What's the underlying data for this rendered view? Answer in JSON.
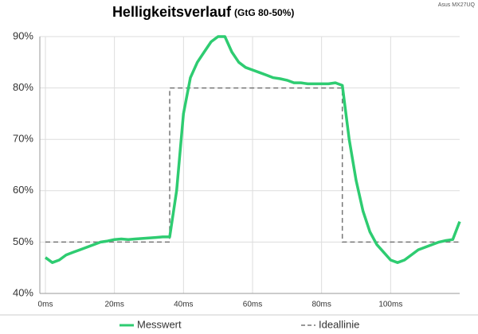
{
  "chart_data": {
    "type": "line",
    "title": "Helligkeitsverlauf",
    "subtitle": "(GtG 80-50%)",
    "annotation": "Asus MX27UQ",
    "xlim": [
      0,
      120
    ],
    "ylim": [
      40,
      90
    ],
    "xticks": [
      {
        "value": 0,
        "label": "0ms"
      },
      {
        "value": 20,
        "label": "20ms"
      },
      {
        "value": 40,
        "label": "40ms"
      },
      {
        "value": 60,
        "label": "60ms"
      },
      {
        "value": 80,
        "label": "80ms"
      },
      {
        "value": 100,
        "label": "100ms"
      }
    ],
    "yticks": [
      {
        "value": 40,
        "label": "40%"
      },
      {
        "value": 50,
        "label": "50%"
      },
      {
        "value": 60,
        "label": "60%"
      },
      {
        "value": 70,
        "label": "70%"
      },
      {
        "value": 80,
        "label": "80%"
      },
      {
        "value": 90,
        "label": "90%"
      }
    ],
    "grid": true,
    "legend": "bottom",
    "series": [
      {
        "name": "Messwert",
        "color": "#2ecc71",
        "dashed": false,
        "x": [
          0,
          2,
          4,
          6,
          8,
          10,
          12,
          14,
          16,
          18,
          20,
          22,
          24,
          26,
          28,
          30,
          32,
          34,
          36,
          38,
          40,
          42,
          44,
          46,
          48,
          50,
          52,
          54,
          56,
          58,
          60,
          62,
          64,
          66,
          68,
          70,
          72,
          74,
          76,
          78,
          80,
          82,
          84,
          86,
          88,
          90,
          92,
          94,
          96,
          98,
          100,
          102,
          104,
          106,
          108,
          110,
          112,
          114,
          116,
          118,
          120
        ],
        "values": [
          47,
          46,
          46.5,
          47.5,
          48,
          48.5,
          49,
          49.5,
          50,
          50.2,
          50.5,
          50.6,
          50.5,
          50.6,
          50.7,
          50.8,
          50.9,
          51,
          51,
          60,
          75,
          82,
          85,
          87,
          89,
          90,
          90,
          87,
          85,
          84,
          83.5,
          83,
          82.5,
          82,
          81.8,
          81.5,
          81,
          81,
          80.8,
          80.8,
          80.8,
          80.8,
          81,
          80.5,
          70,
          62,
          56,
          52,
          49.5,
          48,
          46.5,
          46,
          46.5,
          47.5,
          48.5,
          49,
          49.5,
          50,
          50.3,
          50.5,
          54
        ]
      },
      {
        "name": "Ideallinie",
        "color": "#777777",
        "dashed": true,
        "x": [
          0,
          36,
          36,
          86,
          86,
          120
        ],
        "values": [
          50,
          50,
          80,
          80,
          50,
          50
        ]
      }
    ]
  }
}
